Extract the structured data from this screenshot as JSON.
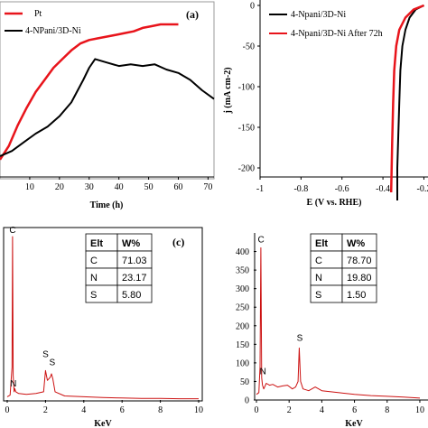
{
  "chart_data": [
    {
      "id": "a",
      "type": "line",
      "panel_label": "(a)",
      "xlabel": "Time (h)",
      "ylabel": "",
      "xlim": [
        0,
        72
      ],
      "ylim": [
        0,
        100
      ],
      "xticks": [
        "10",
        "20",
        "30",
        "40",
        "50",
        "60",
        "70"
      ],
      "xtick_values": [
        10,
        20,
        30,
        40,
        50,
        60,
        70
      ],
      "legend_position": "top-left",
      "series": [
        {
          "name": "Pt",
          "color": "#e8141b",
          "x": [
            0,
            3,
            6,
            9,
            12,
            15,
            18,
            21,
            24,
            27,
            30,
            33,
            36,
            39,
            42,
            45,
            48,
            51,
            54,
            57,
            60
          ],
          "y": [
            10,
            18,
            30,
            40,
            49,
            56,
            63,
            68,
            73,
            77,
            79,
            80,
            81,
            82,
            83,
            84,
            86,
            87,
            88,
            88,
            88
          ]
        },
        {
          "name": "4-NPani/3D-Ni",
          "color": "#000000",
          "x": [
            0,
            4,
            8,
            12,
            16,
            20,
            24,
            28,
            30,
            32,
            36,
            40,
            44,
            48,
            52,
            56,
            60,
            64,
            68,
            72
          ],
          "y": [
            12,
            15,
            20,
            25,
            29,
            35,
            43,
            56,
            63,
            68,
            66,
            64,
            65,
            64,
            65,
            62,
            60,
            56,
            50,
            45
          ]
        }
      ]
    },
    {
      "id": "b",
      "type": "line",
      "xlabel": "E (V vs. RHE)",
      "ylabel": "j (mA cm-2)",
      "xlim": [
        -1,
        -0.18
      ],
      "ylim": [
        -250,
        0
      ],
      "xticks": [
        "-1",
        "-0.8",
        "-0.6",
        "-0.4",
        "-0.2"
      ],
      "xtick_values": [
        -1,
        -0.8,
        -0.6,
        -0.4,
        -0.2
      ],
      "yticks": [
        "0",
        "-50",
        "-100",
        "-150",
        "-200"
      ],
      "ytick_values": [
        0,
        -50,
        -100,
        -150,
        -200
      ],
      "legend_position": "top-left",
      "series": [
        {
          "name": "4-Npani/3D-Ni",
          "color": "#000000",
          "x": [
            -0.2,
            -0.24,
            -0.27,
            -0.29,
            -0.305,
            -0.315,
            -0.32,
            -0.325,
            -0.33,
            -0.33
          ],
          "y": [
            0,
            -5,
            -15,
            -30,
            -50,
            -80,
            -120,
            -160,
            -200,
            -240
          ]
        },
        {
          "name": "4-Npani/3D-Ni After 72h",
          "color": "#e8141b",
          "x": [
            -0.2,
            -0.25,
            -0.29,
            -0.32,
            -0.335,
            -0.345,
            -0.35,
            -0.355,
            -0.36
          ],
          "y": [
            0,
            -5,
            -15,
            -30,
            -50,
            -80,
            -120,
            -170,
            -230
          ]
        }
      ]
    },
    {
      "id": "c",
      "type": "line",
      "panel_label": "(c)",
      "xlabel": "KeV",
      "ylabel": "",
      "xlim": [
        0,
        10
      ],
      "xticks": [
        "0",
        "2",
        "4",
        "6",
        "8",
        "10"
      ],
      "xtick_values": [
        0,
        2,
        4,
        6,
        8,
        10
      ],
      "peak_labels": [
        {
          "text": "C",
          "x": 0.28,
          "y": 1.0
        },
        {
          "text": "N",
          "x": 0.32,
          "y": 0.06
        },
        {
          "text": "S",
          "x": 2.0,
          "y": 0.24
        },
        {
          "text": "S",
          "x": 2.35,
          "y": 0.19
        }
      ],
      "series": [
        {
          "name": "",
          "color": "#cc1111",
          "x": [
            0,
            0.15,
            0.25,
            0.28,
            0.31,
            0.36,
            0.39,
            0.45,
            0.6,
            1.0,
            1.5,
            1.9,
            2.0,
            2.1,
            2.25,
            2.31,
            2.38,
            2.5,
            3.0,
            4.0,
            5.0,
            6.0,
            7.0,
            8.0,
            9.0,
            10.0
          ],
          "y": [
            0.02,
            0.03,
            0.2,
            1.0,
            0.15,
            0.05,
            0.07,
            0.05,
            0.04,
            0.035,
            0.04,
            0.05,
            0.18,
            0.12,
            0.14,
            0.16,
            0.13,
            0.05,
            0.025,
            0.02,
            0.015,
            0.012,
            0.01,
            0.01,
            0.008,
            0.008
          ]
        }
      ],
      "table": {
        "header": [
          "Elt",
          "W%"
        ],
        "rows": [
          [
            "C",
            "71.03"
          ],
          [
            "N",
            "23.17"
          ],
          [
            "S",
            "5.80"
          ]
        ]
      }
    },
    {
      "id": "d",
      "type": "line",
      "xlabel": "KeV",
      "ylabel": "",
      "xlim": [
        0,
        10
      ],
      "ylim": [
        0,
        450
      ],
      "xticks": [
        "0",
        "2",
        "4",
        "6",
        "8",
        "10"
      ],
      "xtick_values": [
        0,
        2,
        4,
        6,
        8,
        10
      ],
      "yticks": [
        "0",
        "50",
        "100",
        "150",
        "200",
        "250",
        "300",
        "350",
        "400"
      ],
      "ytick_values": [
        0,
        50,
        100,
        150,
        200,
        250,
        300,
        350,
        400
      ],
      "peak_labels": [
        {
          "text": "C",
          "x": 0.28,
          "y": 415
        },
        {
          "text": "N",
          "x": 0.4,
          "y": 60
        },
        {
          "text": "S",
          "x": 2.65,
          "y": 150
        }
      ],
      "series": [
        {
          "name": "",
          "color": "#cc1111",
          "x": [
            0,
            0.15,
            0.22,
            0.27,
            0.32,
            0.37,
            0.45,
            0.6,
            0.8,
            1.0,
            1.3,
            1.6,
            1.9,
            2.2,
            2.4,
            2.55,
            2.62,
            2.7,
            2.85,
            3.2,
            3.6,
            4.0,
            5.0,
            6.0,
            7.0,
            8.0,
            9.0,
            10.0
          ],
          "y": [
            15,
            20,
            90,
            410,
            60,
            40,
            30,
            45,
            40,
            42,
            35,
            38,
            40,
            30,
            35,
            50,
            140,
            50,
            30,
            25,
            35,
            25,
            20,
            15,
            12,
            10,
            8,
            5
          ]
        }
      ],
      "table": {
        "header": [
          "Elt",
          "W%"
        ],
        "rows": [
          [
            "C",
            "78.70"
          ],
          [
            "N",
            "19.80"
          ],
          [
            "S",
            "1.50"
          ]
        ]
      }
    }
  ]
}
